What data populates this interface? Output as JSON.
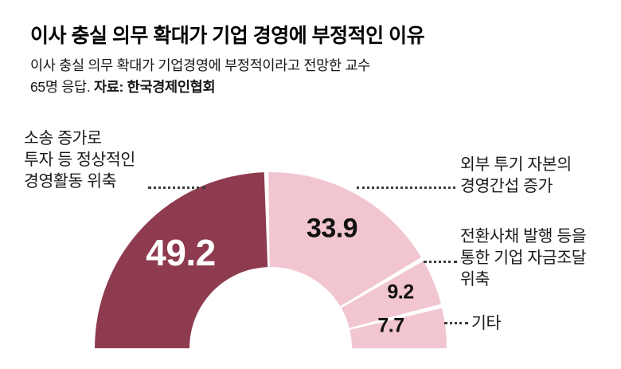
{
  "header": {
    "title": "이사 충실 의무 확대가 기업 경영에 부정적인 이유",
    "subtitle_line1": "이사 충실 의무 확대가 기업경영에 부정적이라고 전망한 교수",
    "subtitle_line2_regular": "65명 응답.",
    "subtitle_line2_source": "자료: 한국경제인협회"
  },
  "chart_data": {
    "type": "pie",
    "variant": "half_donut",
    "title": "이사 충실 의무 확대가 기업 경영에 부정적인 이유",
    "unit": "%",
    "categories": [
      "소송 증가로 투자 등 정상적인 경영활동 위축",
      "외부 투기 자본의 경영간섭 증가",
      "전환사채 발행 등을 통한 기업 자금조달 위축",
      "기타"
    ],
    "values": [
      49.2,
      33.9,
      9.2,
      7.7
    ],
    "colors": [
      "#8e3a4f",
      "#f2c6d0",
      "#f2c6d0",
      "#f2c6d0"
    ],
    "legend_position": "none",
    "grid": false
  },
  "segment_labels": {
    "left": [
      "소송 증가로",
      "투자 등 정상적인",
      "경영활동 위축"
    ],
    "right_top": [
      "외부 투기 자본의",
      "경영간섭 증가"
    ],
    "right_mid": [
      "전환사채 발행 등을",
      "통한 기업 자금조달",
      "위축"
    ],
    "right_bottom": "기타"
  },
  "colors": {
    "primary_segment": "#8e3a4f",
    "light_segment": "#f2c6d0",
    "value_on_dark": "#ffffff",
    "text": "#111111",
    "leader_dots": "#3c3c3c",
    "background": "#ffffff"
  }
}
